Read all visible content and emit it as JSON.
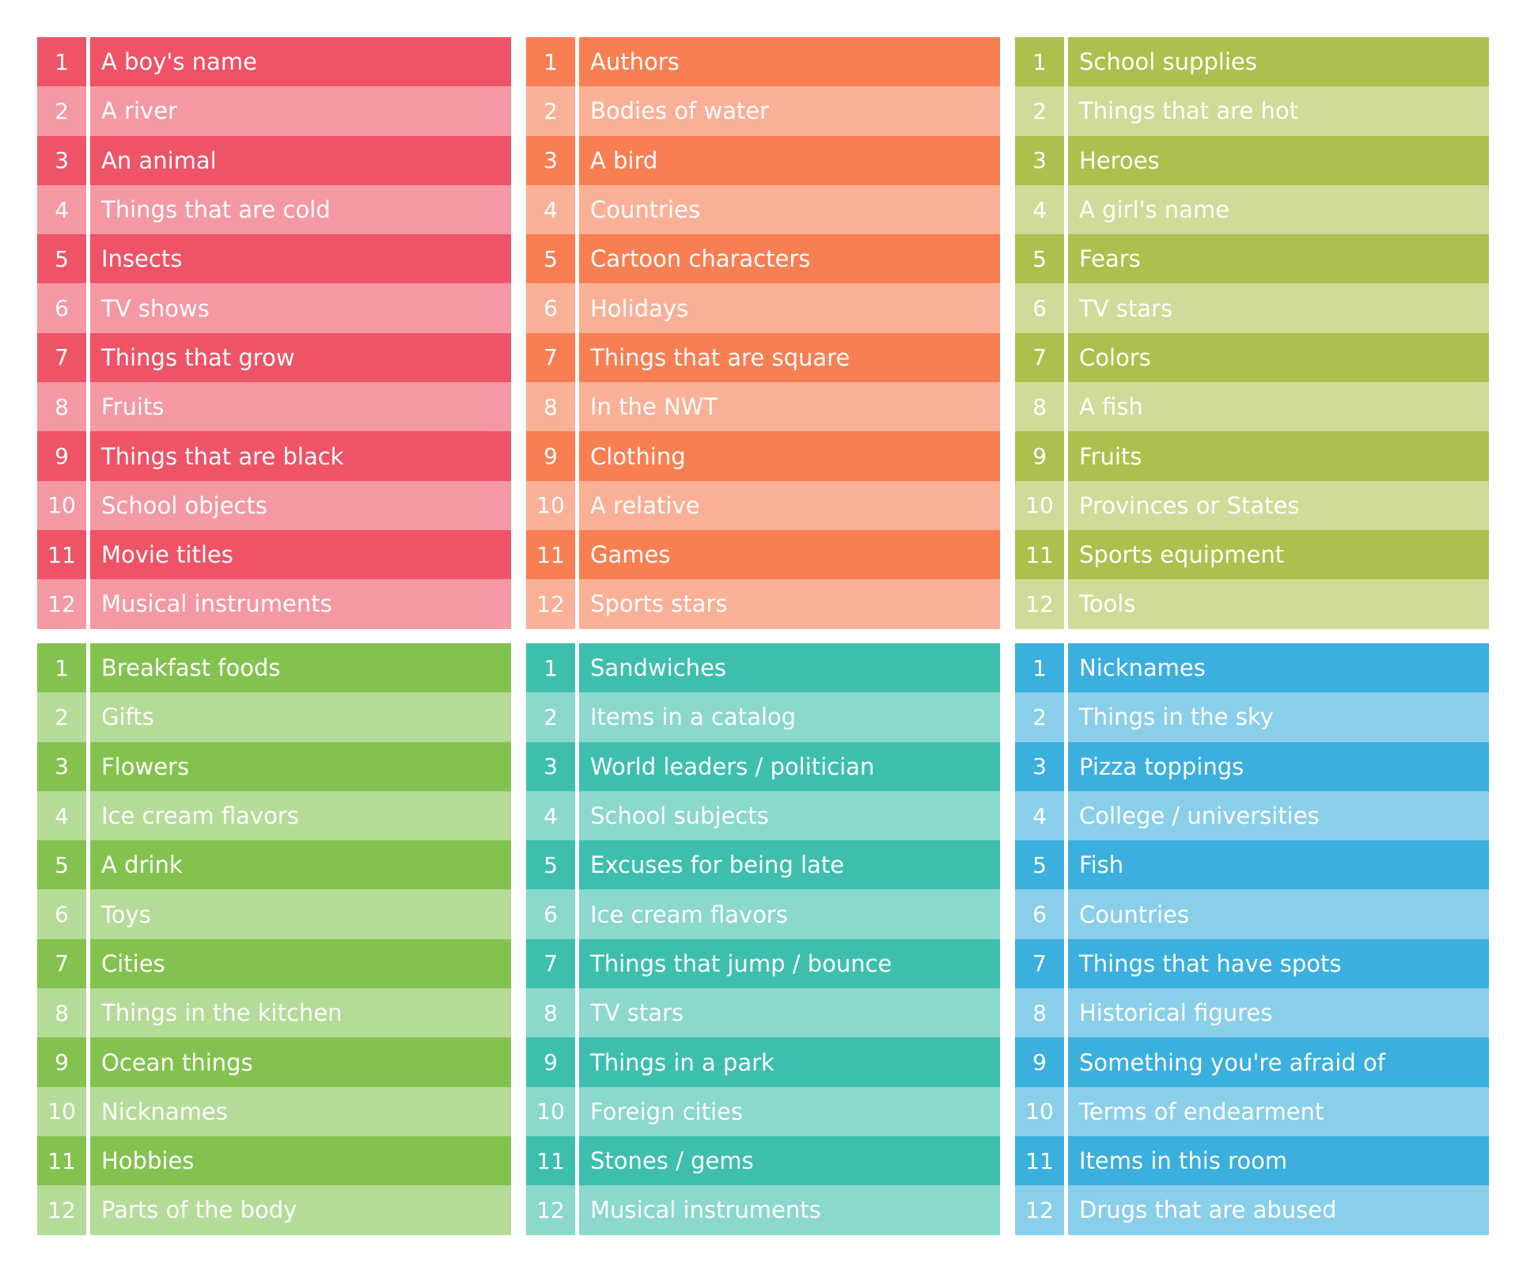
{
  "lists": [
    {
      "colors": {
        "dark": "#EE5367",
        "light": "#F498A4"
      },
      "items": [
        {
          "num": "1",
          "label": "A boy's name"
        },
        {
          "num": "2",
          "label": "A river"
        },
        {
          "num": "3",
          "label": "An animal"
        },
        {
          "num": "4",
          "label": "Things that are cold"
        },
        {
          "num": "5",
          "label": "Insects"
        },
        {
          "num": "6",
          "label": "TV shows"
        },
        {
          "num": "7",
          "label": "Things that grow"
        },
        {
          "num": "8",
          "label": "Fruits"
        },
        {
          "num": "9",
          "label": "Things that are black"
        },
        {
          "num": "10",
          "label": "School objects"
        },
        {
          "num": "11",
          "label": "Movie titles"
        },
        {
          "num": "12",
          "label": "Musical instruments"
        }
      ]
    },
    {
      "colors": {
        "dark": "#F87F52",
        "light": "#FAB097"
      },
      "items": [
        {
          "num": "1",
          "label": "Authors"
        },
        {
          "num": "2",
          "label": "Bodies of water"
        },
        {
          "num": "3",
          "label": "A bird"
        },
        {
          "num": "4",
          "label": "Countries"
        },
        {
          "num": "5",
          "label": "Cartoon characters"
        },
        {
          "num": "6",
          "label": "Holidays"
        },
        {
          "num": "7",
          "label": "Things that are square"
        },
        {
          "num": "8",
          "label": "In the NWT"
        },
        {
          "num": "9",
          "label": "Clothing"
        },
        {
          "num": "10",
          "label": "A relative"
        },
        {
          "num": "11",
          "label": "Games"
        },
        {
          "num": "12",
          "label": "Sports stars"
        }
      ]
    },
    {
      "colors": {
        "dark": "#ADC04D",
        "light": "#CFDB98"
      },
      "items": [
        {
          "num": "1",
          "label": "School supplies"
        },
        {
          "num": "2",
          "label": "Things that are hot"
        },
        {
          "num": "3",
          "label": "Heroes"
        },
        {
          "num": "4",
          "label": "A girl's name"
        },
        {
          "num": "5",
          "label": "Fears"
        },
        {
          "num": "6",
          "label": "TV stars"
        },
        {
          "num": "7",
          "label": "Colors"
        },
        {
          "num": "8",
          "label": "A fish"
        },
        {
          "num": "9",
          "label": "Fruits"
        },
        {
          "num": "10",
          "label": "Provinces or States"
        },
        {
          "num": "11",
          "label": "Sports equipment"
        },
        {
          "num": "12",
          "label": "Tools"
        }
      ]
    },
    {
      "colors": {
        "dark": "#84C250",
        "light": "#B5DB98"
      },
      "items": [
        {
          "num": "1",
          "label": "Breakfast foods"
        },
        {
          "num": "2",
          "label": "Gifts"
        },
        {
          "num": "3",
          "label": "Flowers"
        },
        {
          "num": "4",
          "label": "Ice cream flavors"
        },
        {
          "num": "5",
          "label": "A drink"
        },
        {
          "num": "6",
          "label": "Toys"
        },
        {
          "num": "7",
          "label": "Cities"
        },
        {
          "num": "8",
          "label": "Things in the kitchen"
        },
        {
          "num": "9",
          "label": "Ocean things"
        },
        {
          "num": "10",
          "label": "Nicknames"
        },
        {
          "num": "11",
          "label": "Hobbies"
        },
        {
          "num": "12",
          "label": "Parts of the body"
        }
      ]
    },
    {
      "colors": {
        "dark": "#3EBFAE",
        "light": "#8BD8CD"
      },
      "items": [
        {
          "num": "1",
          "label": "Sandwiches"
        },
        {
          "num": "2",
          "label": "Items in a catalog"
        },
        {
          "num": "3",
          "label": "World leaders / politician"
        },
        {
          "num": "4",
          "label": "School subjects"
        },
        {
          "num": "5",
          "label": "Excuses for being late"
        },
        {
          "num": "6",
          "label": "Ice cream flavors"
        },
        {
          "num": "7",
          "label": "Things that jump / bounce"
        },
        {
          "num": "8",
          "label": "TV stars"
        },
        {
          "num": "9",
          "label": "Things in a park"
        },
        {
          "num": "10",
          "label": "Foreign cities"
        },
        {
          "num": "11",
          "label": "Stones / gems"
        },
        {
          "num": "12",
          "label": "Musical instruments"
        }
      ]
    },
    {
      "colors": {
        "dark": "#3BAFDD",
        "light": "#8ACFEA"
      },
      "items": [
        {
          "num": "1",
          "label": "Nicknames"
        },
        {
          "num": "2",
          "label": "Things in the sky"
        },
        {
          "num": "3",
          "label": "Pizza toppings"
        },
        {
          "num": "4",
          "label": "College / universities"
        },
        {
          "num": "5",
          "label": "Fish"
        },
        {
          "num": "6",
          "label": "Countries"
        },
        {
          "num": "7",
          "label": "Things that have spots"
        },
        {
          "num": "8",
          "label": "Historical figures"
        },
        {
          "num": "9",
          "label": "Something you're afraid of"
        },
        {
          "num": "10",
          "label": "Terms of endearment"
        },
        {
          "num": "11",
          "label": "Items in this room"
        },
        {
          "num": "12",
          "label": "Drugs that are abused"
        }
      ]
    }
  ]
}
